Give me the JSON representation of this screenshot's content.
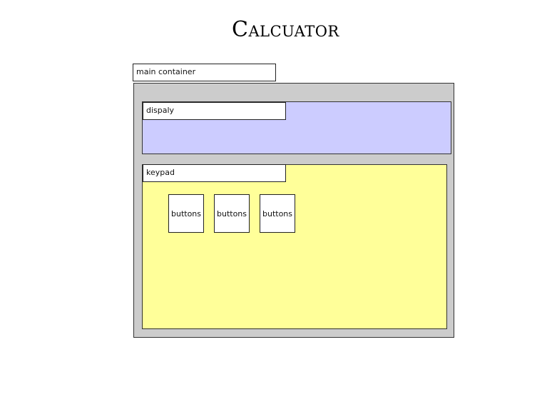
{
  "title": "Calcuator",
  "main_container": {
    "label": "main container"
  },
  "display": {
    "label": "dispaly"
  },
  "keypad": {
    "label": "keypad",
    "buttons": [
      "buttons",
      "buttons",
      "buttons"
    ]
  },
  "colors": {
    "main_container_fill": "#cccccc",
    "display_fill": "#ccccff",
    "keypad_fill": "#ffff99"
  }
}
